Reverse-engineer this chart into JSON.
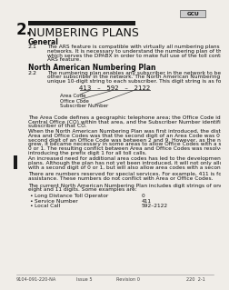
{
  "bg_color": "#f0ede8",
  "header_logo": "GCU",
  "chapter_num": "2.",
  "chapter_bar_color": "#1a1a1a",
  "chapter_title": "NUMBERING PLANS",
  "section1_title": "General",
  "para_2_1_num": "2.1",
  "section2_title": "North American Numbering Plan",
  "para_2_2_num": "2.2",
  "diagram_number": "413   –   592   –   2122",
  "diagram_label1": "Area Code",
  "diagram_label2": "Office Code",
  "diagram_label3": "Subscriber Number",
  "lines_21": [
    "The ARS feature is compatible with virtually all numbering plans employed by public",
    "networks. It is necessary to understand the numbering plan of the public network",
    "which serves the DPABX in order to make full use of the toll control application of the",
    "ARS feature."
  ],
  "lines_22": [
    "The numbering plan enables any subscriber in the network to be connected to any",
    "other subscriber in the network. The North American Numbering Plan assigns a",
    "unique 10-digit string to each subscriber. This digit string is as follows:"
  ],
  "lines_ac": [
    "The Area Code defines a geographic telephone area; the Office Code identifies a",
    "Central Office (CO) within that area, and the Subscriber Number identifies a specific",
    "subscriber of that CO."
  ],
  "lines_when": [
    "When the North American Numbering Plan was first introduced, the distinction between",
    "Area and Office Codes was that the second digit of an Area Code was 0 or 1 while the",
    "second digit of an Office Code was between 2 and 9. However, as the number of COs",
    "grew, it became necessary in some areas to allow Office Codes with a second digit of",
    "0 or 1. The resulting conflict between Area and Office Codes was resolved by",
    "introducing the prefix digit 1 for all toll calls."
  ],
  "lines_inc": [
    "An increased need for additional area codes has led to the development of new dialing",
    "plans. Although the plan has not yet been introduced, it will not only allow office codes",
    "with a second digit of 0 or 1, but will also allow area codes with a second digit of 2–9."
  ],
  "lines_res": [
    "There are numbers reserved for special services. For example, 411 is for directory",
    "assistance. These numbers do not conflict with Area or Office Codes."
  ],
  "lines_cur": [
    "The current North American Numbering Plan includes digit strings of one, three, seven,",
    "eight and 11 digits. Some examples are:"
  ],
  "bullet1_label": "Long Distance Toll Operator",
  "bullet1_value": "0",
  "bullet2_label": "Service Number",
  "bullet2_value": "411",
  "bullet3_label": "Local Call",
  "bullet3_value": "592–2122",
  "footer_left": "9104-091-220-NA",
  "footer_mid_left": "Issue 5",
  "footer_mid": "Revision 0",
  "footer_right": "220  2-1",
  "sidebar_bar_color": "#1a1a1a",
  "text_color": "#111111",
  "footer_color": "#444444"
}
